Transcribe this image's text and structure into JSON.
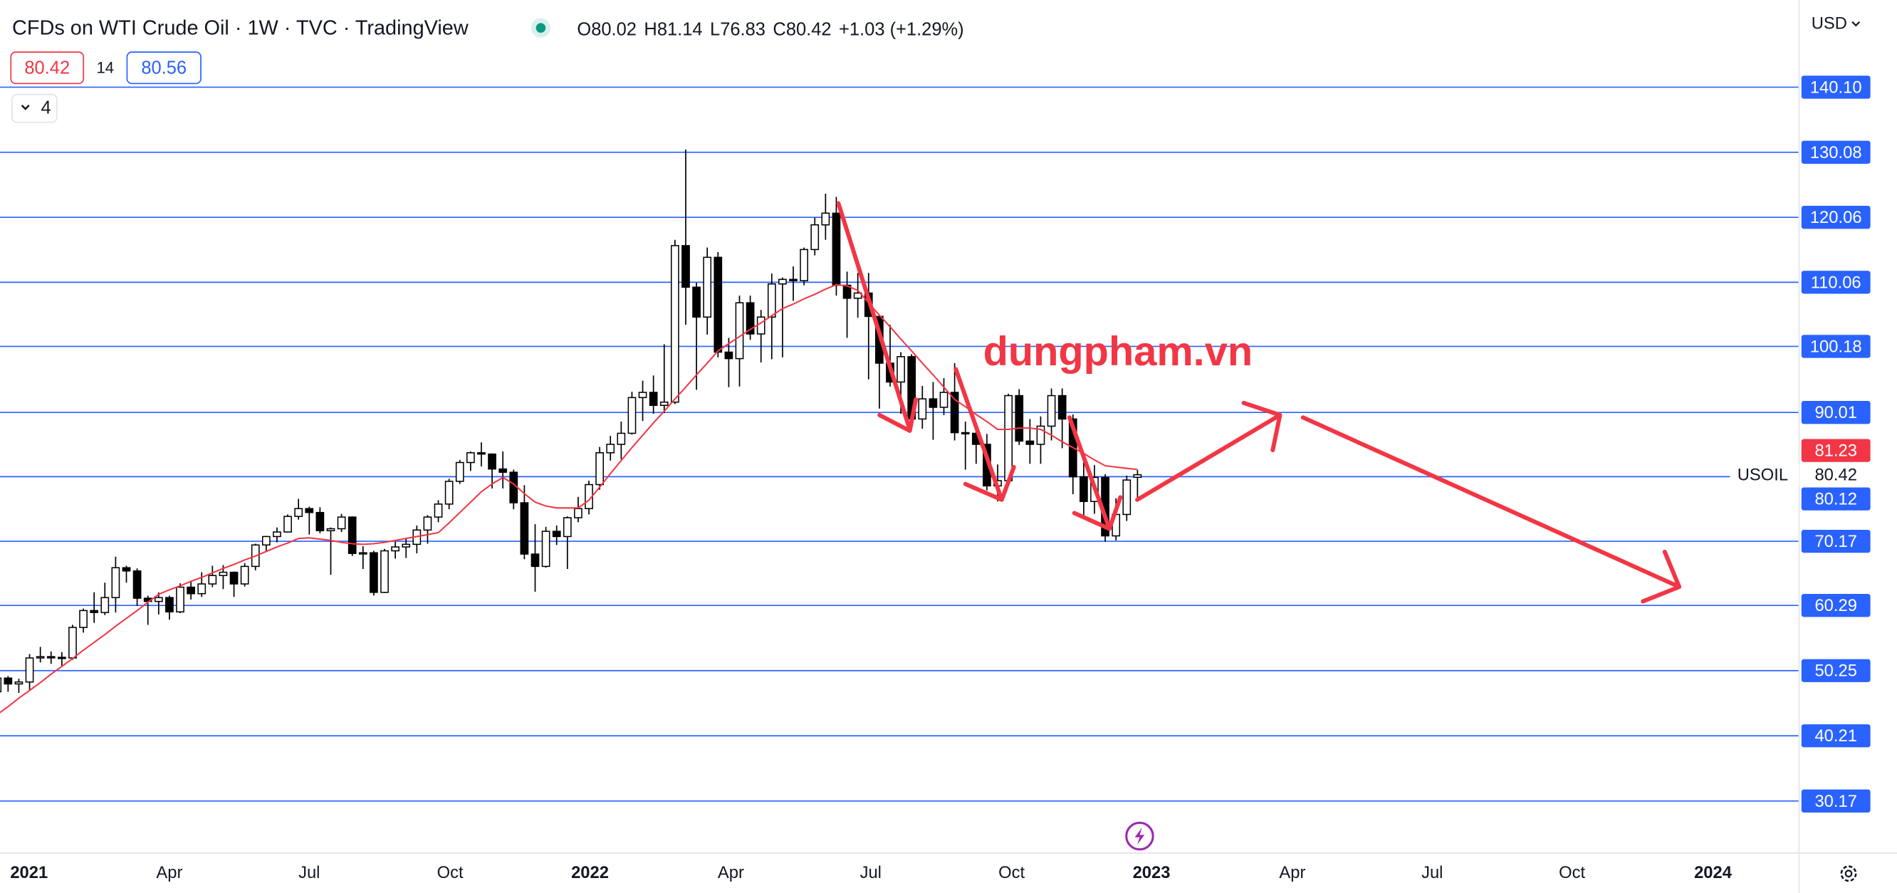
{
  "chart_data": {
    "type": "candlestick",
    "title": "CFDs on WTI Crude Oil · 1W · TVC · TradingView",
    "legend_keys": [
      "O",
      "H",
      "L",
      "C"
    ],
    "change": "+1.03 (+1.29%)",
    "sell": 80.42,
    "spread": 14,
    "buy": 80.56,
    "indicators_count": 4,
    "currency": "USD",
    "symbol": "USOIL",
    "watermark": "dungpham.vn",
    "x": [
      0,
      1,
      2,
      3,
      4,
      5,
      6,
      7,
      8,
      9,
      10,
      11,
      12,
      13,
      14,
      15,
      16,
      17,
      18,
      19,
      20,
      21,
      22,
      23,
      24,
      25,
      26,
      27,
      28,
      29,
      30,
      31,
      32,
      33,
      34,
      35,
      36,
      37,
      38,
      39,
      40,
      41,
      42,
      43,
      44,
      45,
      46,
      47,
      48,
      49,
      50,
      51,
      52,
      53,
      54,
      55,
      56,
      57,
      58,
      59,
      60,
      61,
      62,
      63,
      64,
      65,
      66,
      67,
      68,
      69,
      70,
      71,
      72,
      73,
      74,
      75,
      76,
      77,
      78,
      79,
      80,
      81,
      82,
      83,
      84,
      85,
      86,
      87,
      88,
      89,
      90,
      91,
      92,
      93,
      94,
      95,
      96,
      97,
      98,
      99,
      100,
      101,
      102,
      103,
      104,
      105,
      106
    ],
    "open": [
      47,
      49.1,
      48.2,
      48.5,
      52.2,
      52.4,
      52.3,
      52.2,
      56.9,
      59.5,
      59.2,
      61.5,
      66.1,
      65.6,
      61.4,
      60.9,
      61.5,
      59.3,
      63.1,
      62.1,
      63.6,
      64.9,
      65.4,
      63.6,
      66.3,
      69.6,
      70.9,
      71.6,
      74.0,
      75.2,
      74.6,
      71.8,
      72.1,
      73.9,
      68.3,
      68.4,
      62.3,
      68.7,
      69.3,
      69.7,
      71.9,
      73.9,
      75.9,
      79.4,
      82.3,
      83.8,
      83.6,
      81.3,
      80.8,
      76.1,
      68.2,
      66.3,
      71.7,
      70.9,
      73.8,
      75.2,
      78.9,
      83.8,
      85.1,
      86.8,
      92.3,
      93.1,
      91.1,
      91.6,
      115.7,
      109.3,
      104.7,
      113.9,
      99.3,
      98.3,
      106.9,
      102.1,
      104.7,
      109.8,
      110.5,
      110.3,
      115.1,
      118.9,
      120.7,
      109.6,
      107.6,
      108.4,
      104.8,
      97.6,
      94.7,
      98.6,
      89.0,
      92.1,
      90.8,
      93.1,
      86.9,
      86.8,
      85.1,
      78.7,
      79.5,
      92.6,
      85.6,
      85.1,
      87.9,
      92.6,
      89.0,
      80.1,
      76.3,
      80.0,
      71.0,
      74.3,
      80.02
    ],
    "high": [
      49.6,
      49.4,
      49.0,
      52.8,
      53.9,
      53.2,
      53.1,
      57.3,
      59.8,
      62.3,
      63.8,
      67.8,
      66.4,
      66.0,
      61.8,
      62.3,
      61.8,
      63.7,
      64.1,
      65.4,
      66.4,
      66.5,
      65.5,
      66.8,
      69.8,
      71.0,
      72.3,
      74.3,
      76.7,
      75.5,
      75.4,
      72.3,
      74.4,
      74.0,
      69.4,
      68.7,
      69.0,
      70.1,
      70.7,
      72.6,
      74.2,
      76.5,
      79.8,
      82.7,
      84.0,
      85.4,
      83.7,
      84.0,
      81.2,
      78.8,
      72.8,
      72.4,
      72.6,
      74.0,
      77.0,
      79.5,
      84.7,
      86.4,
      88.6,
      93.2,
      94.9,
      95.7,
      100.5,
      116.6,
      130.5,
      110.0,
      115.4,
      114.7,
      101.5,
      108.0,
      108.0,
      105.8,
      111.4,
      110.8,
      112.5,
      115.4,
      120.0,
      123.7,
      123.2,
      111.7,
      111.5,
      111.5,
      105.0,
      103.5,
      99.3,
      99.0,
      94.1,
      94.7,
      95.3,
      97.6,
      88.6,
      88.2,
      86.7,
      82.0,
      92.9,
      93.6,
      89.0,
      89.4,
      93.7,
      93.7,
      89.7,
      82.5,
      81.9,
      80.5,
      76.8,
      80.3,
      81.14
    ],
    "low": [
      46.3,
      47.0,
      46.8,
      47.2,
      51.5,
      51.3,
      51.0,
      51.9,
      56.1,
      57.6,
      58.8,
      59.2,
      63.8,
      60.2,
      57.3,
      58.9,
      58.1,
      59.1,
      61.2,
      61.6,
      63.1,
      62.8,
      61.6,
      63.2,
      65.7,
      68.5,
      70.0,
      71.5,
      73.5,
      71.2,
      71.4,
      65.0,
      71.6,
      67.9,
      65.9,
      61.8,
      62.2,
      67.5,
      67.6,
      68.3,
      69.8,
      73.1,
      75.1,
      79.0,
      81.0,
      81.7,
      78.3,
      78.3,
      75.1,
      67.4,
      62.4,
      66.1,
      69.6,
      65.9,
      73.1,
      74.3,
      78.1,
      82.6,
      82.8,
      86.6,
      88.7,
      89.8,
      89.9,
      91.3,
      103.5,
      93.5,
      102.0,
      98.5,
      93.9,
      94.0,
      101.2,
      97.7,
      98.2,
      98.5,
      107.2,
      109.6,
      114.2,
      116.6,
      108.0,
      101.5,
      104.6,
      95.1,
      90.6,
      94.0,
      89.8,
      87.6,
      87.5,
      85.8,
      89.6,
      85.7,
      81.2,
      82.1,
      78.0,
      76.3,
      79.3,
      85.0,
      82.1,
      82.1,
      85.7,
      84.5,
      77.4,
      73.6,
      74.4,
      70.1,
      70.3,
      73.3,
      76.83
    ],
    "close": [
      49.1,
      48.2,
      48.5,
      52.2,
      52.4,
      52.3,
      52.2,
      56.9,
      59.5,
      59.2,
      61.5,
      66.1,
      65.6,
      61.4,
      60.9,
      61.5,
      59.3,
      63.1,
      62.1,
      63.6,
      64.9,
      65.4,
      63.6,
      66.3,
      69.6,
      70.9,
      71.6,
      74.0,
      75.2,
      74.6,
      71.8,
      72.1,
      73.9,
      68.3,
      68.4,
      62.3,
      68.7,
      69.3,
      69.7,
      71.9,
      73.9,
      75.9,
      79.4,
      82.3,
      83.8,
      83.6,
      81.3,
      80.8,
      76.1,
      68.2,
      66.3,
      71.7,
      70.9,
      73.8,
      75.2,
      78.9,
      83.8,
      85.1,
      86.8,
      92.3,
      93.1,
      91.1,
      91.6,
      115.7,
      109.3,
      104.7,
      113.9,
      99.3,
      98.3,
      106.9,
      102.1,
      104.7,
      109.8,
      110.5,
      110.3,
      115.1,
      118.9,
      120.7,
      109.6,
      107.6,
      108.4,
      104.8,
      97.6,
      94.7,
      98.6,
      89.0,
      92.1,
      90.8,
      93.1,
      86.9,
      86.8,
      85.1,
      78.7,
      79.5,
      92.6,
      85.6,
      85.1,
      87.9,
      92.6,
      89.0,
      80.1,
      76.3,
      80.0,
      71.0,
      74.3,
      79.6,
      80.42
    ],
    "ma": {
      "color": "#f23645",
      "values": [
        43.5,
        44.7,
        46.0,
        47.2,
        48.4,
        49.7,
        50.9,
        52.1,
        53.4,
        54.6,
        55.8,
        57.1,
        58.3,
        59.5,
        60.8,
        62.0,
        62.7,
        63.3,
        64.0,
        64.6,
        65.3,
        66.0,
        66.6,
        67.3,
        67.9,
        68.6,
        69.3,
        69.9,
        70.6,
        70.7,
        70.5,
        70.3,
        70.0,
        69.8,
        69.7,
        69.8,
        70.0,
        70.3,
        70.6,
        70.9,
        71.2,
        71.5,
        73.0,
        74.6,
        76.2,
        77.8,
        79.0,
        80.0,
        79.0,
        77.5,
        76.2,
        75.6,
        75.3,
        75.3,
        75.3,
        76.5,
        78.5,
        80.6,
        82.6,
        84.6,
        86.5,
        88.4,
        90.2,
        92.1,
        93.9,
        95.8,
        97.6,
        99.5,
        100.6,
        101.7,
        102.8,
        103.8,
        104.9,
        106.0,
        106.7,
        107.5,
        108.2,
        109.0,
        109.7,
        109.5,
        108.8,
        106.9,
        105.0,
        103.2,
        101.3,
        99.5,
        97.6,
        95.8,
        93.9,
        92.0,
        90.9,
        89.7,
        88.6,
        87.4,
        87.4,
        87.6,
        87.6,
        87.4,
        86.5,
        85.5,
        84.6,
        83.7,
        82.7,
        81.8,
        81.6,
        81.4,
        81.23
      ]
    },
    "up_color": "#ffffff",
    "down_color": "#000000",
    "wick_color": "#000000",
    "grid_color": "#2962ff",
    "xlim": [
      0.25,
      167.5
    ],
    "xticks": [
      {
        "value": 2.95,
        "label": "2021"
      },
      {
        "value": 16.0,
        "label": "Apr"
      },
      {
        "value": 29.0,
        "label": "Jul"
      },
      {
        "value": 42.1,
        "label": "Oct"
      },
      {
        "value": 55.1,
        "label": "2022"
      },
      {
        "value": 68.2,
        "label": "Apr"
      },
      {
        "value": 81.2,
        "label": "Jul"
      },
      {
        "value": 94.3,
        "label": "Oct"
      },
      {
        "value": 107.3,
        "label": "2023"
      },
      {
        "value": 120.4,
        "label": "Apr"
      },
      {
        "value": 133.4,
        "label": "Jul"
      },
      {
        "value": 146.4,
        "label": "Oct"
      },
      {
        "value": 159.5,
        "label": "2024"
      }
    ],
    "ylim": [
      22.16,
      153.52
    ],
    "yticks": [
      {
        "value": 140.1,
        "label": "140.10"
      },
      130.08,
      120.06,
      110.06,
      100.18,
      90.01,
      80.12,
      70.17,
      60.29,
      50.25,
      40.21,
      30.17
    ]
  }
}
